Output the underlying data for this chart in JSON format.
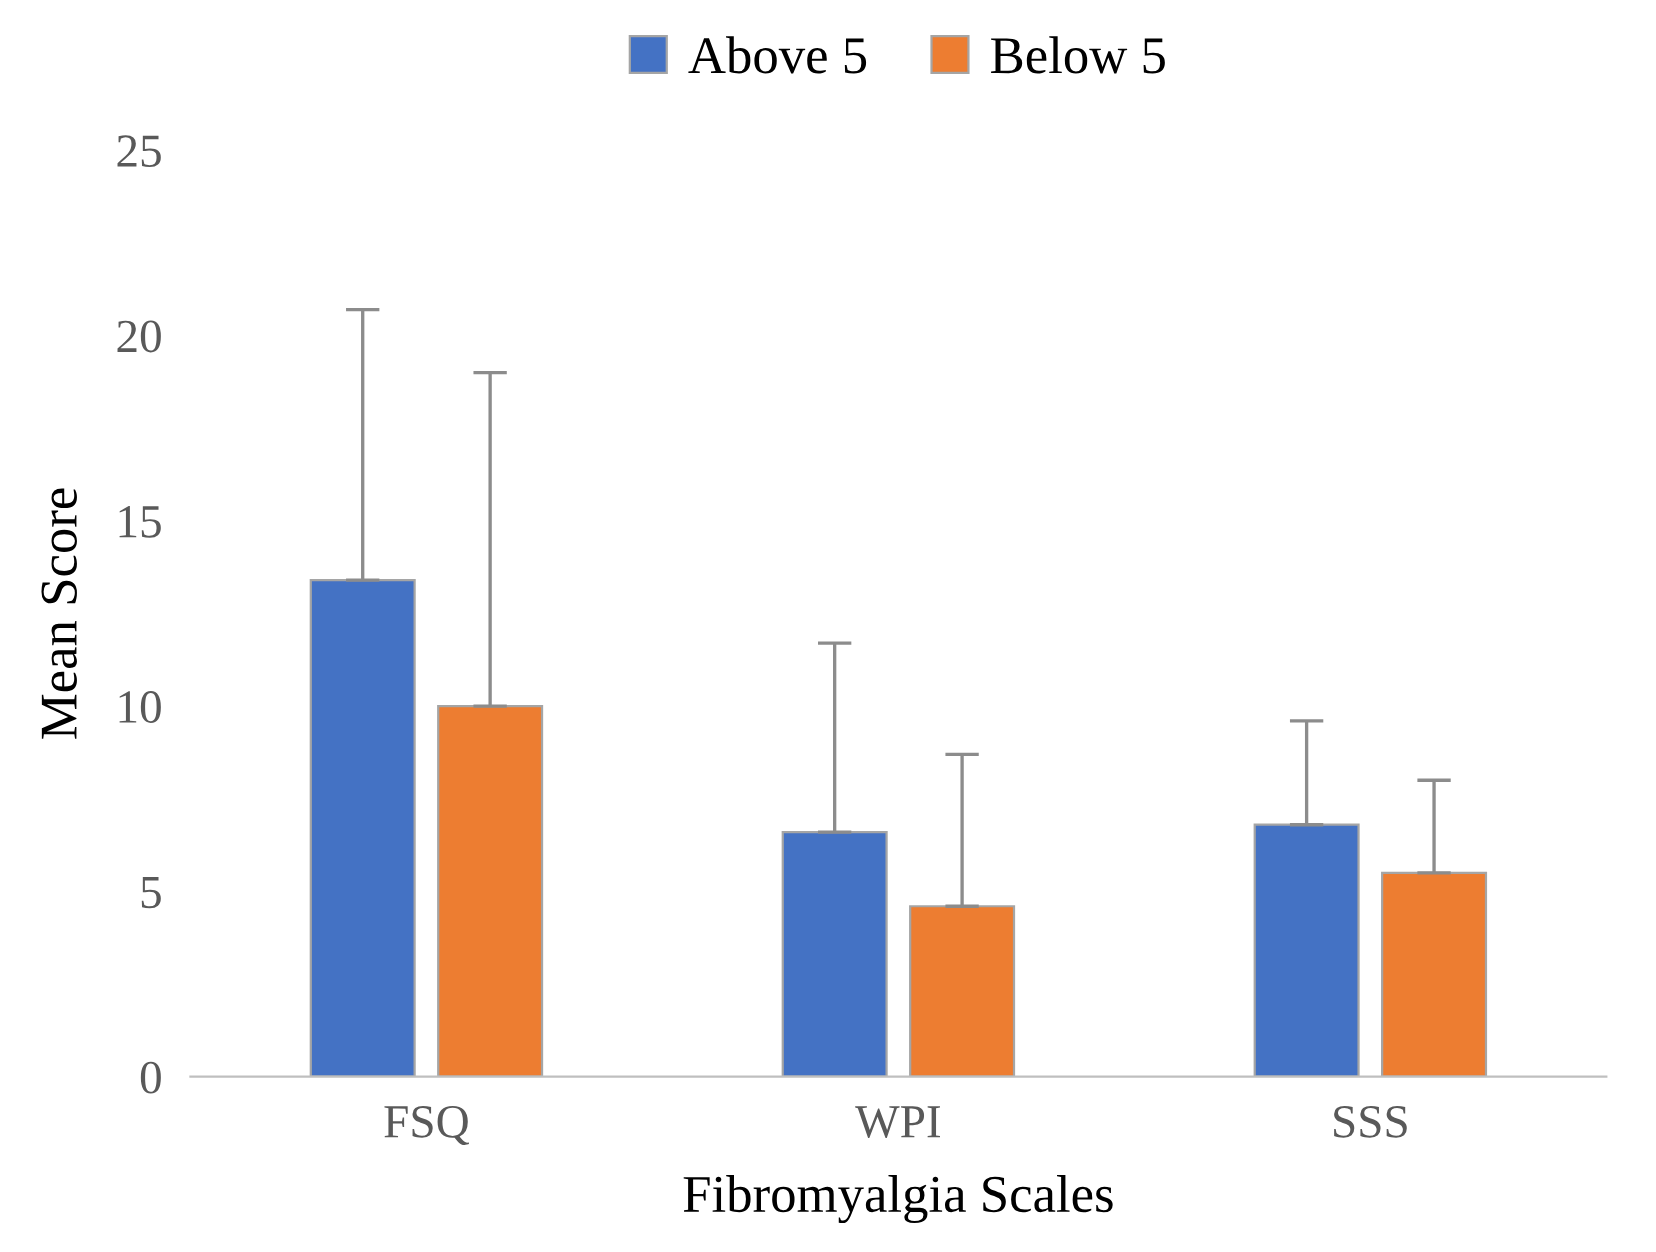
{
  "chart_data": {
    "type": "bar",
    "xlabel": "Fibromyalgia Scales",
    "ylabel": "Mean Score",
    "categories": [
      "FSQ",
      "WPI",
      "SSS"
    ],
    "series": [
      {
        "name": "Above 5",
        "color": "#4472c4",
        "values": [
          13.4,
          6.6,
          6.8
        ],
        "errors": [
          [
            13.4,
            20.7
          ],
          [
            6.6,
            11.7
          ],
          [
            6.8,
            9.6
          ]
        ]
      },
      {
        "name": "Below 5",
        "color": "#ed7d31",
        "values": [
          10.0,
          4.6,
          5.5
        ],
        "errors": [
          [
            10.0,
            19.0
          ],
          [
            4.6,
            8.7
          ],
          [
            5.5,
            8.0
          ]
        ]
      }
    ],
    "ylim": [
      0,
      25
    ],
    "yticks": [
      0,
      5,
      10,
      15,
      20,
      25
    ],
    "grid": false,
    "legend": "top"
  }
}
